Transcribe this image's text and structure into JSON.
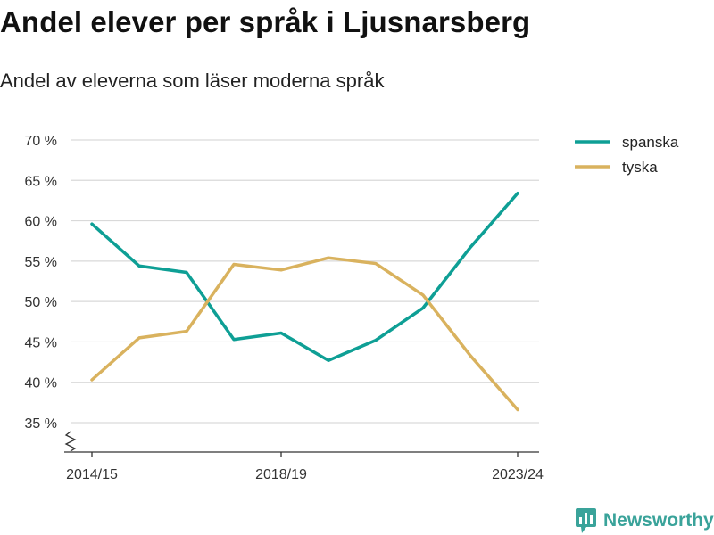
{
  "title": "Andel elever per språk i Ljusnarsberg",
  "subtitle": "Andel av eleverna som läser moderna språk",
  "brand": "Newsworthy",
  "chart_data": {
    "type": "line",
    "x": [
      "2014/15",
      "2015/16",
      "2016/17",
      "2017/18",
      "2018/19",
      "2019/20",
      "2020/21",
      "2021/22",
      "2022/23",
      "2023/24"
    ],
    "x_tick_labels": [
      "2014/15",
      "2018/19",
      "2023/24"
    ],
    "ylim": [
      35,
      70
    ],
    "yticks": [
      35,
      40,
      45,
      50,
      55,
      60,
      65,
      70
    ],
    "ytick_labels": [
      "35 %",
      "40 %",
      "45 %",
      "50 %",
      "55 %",
      "60 %",
      "65 %",
      "70 %"
    ],
    "y_axis_break": true,
    "grid": true,
    "legend_position": "top-right",
    "series": [
      {
        "name": "spanska",
        "color": "#0e9f95",
        "values": [
          59.6,
          54.4,
          53.6,
          45.3,
          46.1,
          42.7,
          45.2,
          49.2,
          56.7,
          63.4
        ]
      },
      {
        "name": "tyska",
        "color": "#d9b25e",
        "values": [
          40.3,
          45.5,
          46.3,
          54.6,
          53.9,
          55.4,
          54.7,
          50.8,
          43.3,
          36.6
        ]
      }
    ]
  }
}
